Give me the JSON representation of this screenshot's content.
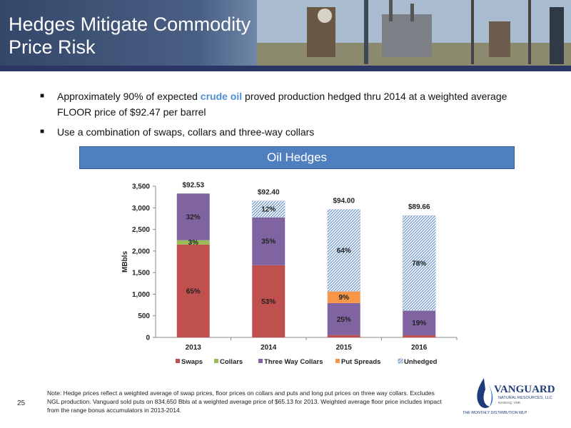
{
  "header": {
    "title_line1": "Hedges Mitigate Commodity",
    "title_line2": "Price Risk"
  },
  "bullets": {
    "b1_pre": "Approximately 90% of expected ",
    "b1_highlight": "crude oil",
    "b1_post": " proved production hedged thru 2014 at a weighted average",
    "b1_line2": "FLOOR price of $92.47 per barrel",
    "b2": "Use a combination of swaps, collars and three-way collars"
  },
  "banner": {
    "label": "Oil Hedges"
  },
  "chart_data": {
    "type": "bar",
    "stacked": true,
    "title": "",
    "xlabel": "",
    "ylabel": "MBbls",
    "ylim": [
      0,
      3500
    ],
    "yticks": [
      "0",
      "500",
      "1,000",
      "1,500",
      "2,000",
      "2,500",
      "3,000",
      "3,500"
    ],
    "categories": [
      "2013",
      "2014",
      "2015",
      "2016"
    ],
    "series": [
      {
        "name": "Swaps",
        "color": "#c0504d",
        "pattern": "solid",
        "values": [
          2150,
          1670,
          55,
          50
        ]
      },
      {
        "name": "Collars",
        "color": "#9bbb59",
        "pattern": "solid",
        "values": [
          100,
          0,
          0,
          0
        ]
      },
      {
        "name": "Three Way Collars",
        "color": "#8064a2",
        "pattern": "solid",
        "values": [
          1080,
          1110,
          740,
          570
        ]
      },
      {
        "name": "Put Spreads",
        "color": "#f79646",
        "pattern": "solid",
        "values": [
          0,
          0,
          270,
          0
        ]
      },
      {
        "name": "Unhedged",
        "color": "#4f81bd",
        "pattern": "hatch",
        "values": [
          0,
          380,
          1900,
          2200
        ]
      }
    ],
    "segment_labels": [
      {
        "category": "2013",
        "series": "Swaps",
        "text": "65%"
      },
      {
        "category": "2013",
        "series": "Collars",
        "text": "3%"
      },
      {
        "category": "2013",
        "series": "Three Way Collars",
        "text": "32%"
      },
      {
        "category": "2014",
        "series": "Swaps",
        "text": "53%"
      },
      {
        "category": "2014",
        "series": "Three Way Collars",
        "text": "35%"
      },
      {
        "category": "2014",
        "series": "Unhedged",
        "text": "12%"
      },
      {
        "category": "2015",
        "series": "Three Way Collars",
        "text": "25%"
      },
      {
        "category": "2015",
        "series": "Put Spreads",
        "text": "9%"
      },
      {
        "category": "2015",
        "series": "Unhedged",
        "text": "64%"
      },
      {
        "category": "2016",
        "series": "Three Way Collars",
        "text": "19%"
      },
      {
        "category": "2016",
        "series": "Unhedged",
        "text": "78%"
      }
    ],
    "price_labels": [
      "$92.53",
      "$92.40",
      "$94.00",
      "$89.66"
    ],
    "legend_position": "bottom",
    "grid": false
  },
  "footer": {
    "page_number": "25",
    "note": "Note: Hedge prices reflect a weighted  average of swap prices, floor prices on collars and puts and long put prices on three way collars. Excludes NGL production. Vanguard sold puts on 834,650 Bbls at a weighted average price of $65.13 for 2013. Weighted average floor price includes impact from the range bonus accumulators in 2013-2014."
  },
  "logo": {
    "name": "VANGUARD",
    "sub": "NATURAL RESOURCES, LLC",
    "ticker": "NASDAQ: VNR",
    "tagline": "THE MONTHLY DISTRIBUTION MLP"
  }
}
